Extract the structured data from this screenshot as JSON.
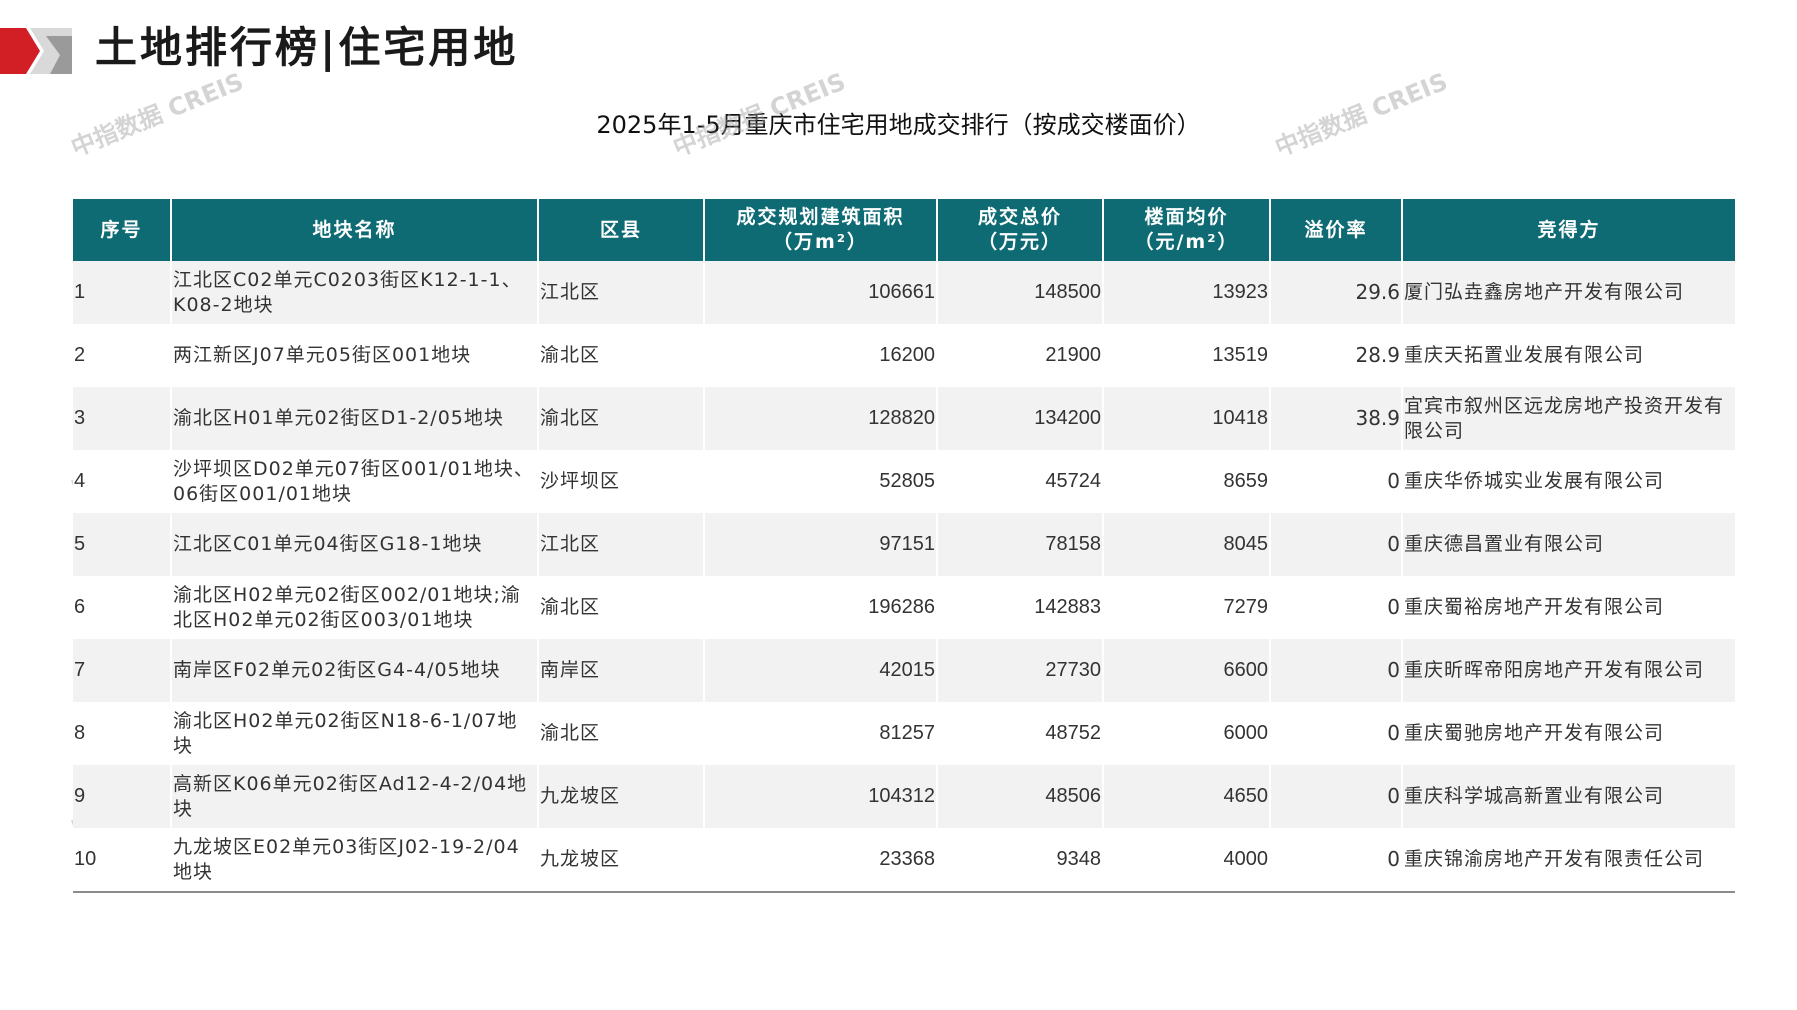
{
  "header": {
    "title": "土地排行榜|住宅用地"
  },
  "table_title": "2025年1-5月重庆市住宅用地成交排行（按成交楼面价）",
  "watermark_text": "中指数据 CREIS",
  "columns": [
    "序号",
    "地块名称",
    "区县",
    "成交规划建筑面积",
    "（万m²）",
    "成交总价",
    "（万元）",
    "楼面均价",
    "（元/m²）",
    "溢价率",
    "竞得方"
  ],
  "header_cells": {
    "rank": "序号",
    "name": "地块名称",
    "district": "区县",
    "area_line1": "成交规划建筑面积",
    "area_line2": "（万m²）",
    "total_line1": "成交总价",
    "total_line2": "（万元）",
    "price_line1": "楼面均价",
    "price_line2": "（元/m²）",
    "premium": "溢价率",
    "buyer": "竞得方"
  },
  "rows": [
    {
      "rank": "1",
      "name": "江北区C02单元C0203街区K12-1-1、K08-2地块",
      "district": "江北区",
      "area": "106661",
      "total": "148500",
      "price": "13923",
      "premium": "29.6",
      "buyer": "厦门弘垚鑫房地产开发有限公司"
    },
    {
      "rank": "2",
      "name": "两江新区J07单元05街区001地块",
      "district": "渝北区",
      "area": "16200",
      "total": "21900",
      "price": "13519",
      "premium": "28.9",
      "buyer": "重庆天拓置业发展有限公司"
    },
    {
      "rank": "3",
      "name": "渝北区H01单元02街区D1-2/05地块",
      "district": "渝北区",
      "area": "128820",
      "total": "134200",
      "price": "10418",
      "premium": "38.9",
      "buyer": "宜宾市叙州区远龙房地产投资开发有限公司"
    },
    {
      "rank": "4",
      "name": "沙坪坝区D02单元07街区001/01地块、06街区001/01地块",
      "district": "沙坪坝区",
      "area": "52805",
      "total": "45724",
      "price": "8659",
      "premium": "0",
      "buyer": "重庆华侨城实业发展有限公司"
    },
    {
      "rank": "5",
      "name": "江北区C01单元04街区G18-1地块",
      "district": "江北区",
      "area": "97151",
      "total": "78158",
      "price": "8045",
      "premium": "0",
      "buyer": "重庆德昌置业有限公司"
    },
    {
      "rank": "6",
      "name": "渝北区H02单元02街区002/01地块;渝北区H02单元02街区003/01地块",
      "district": "渝北区",
      "area": "196286",
      "total": "142883",
      "price": "7279",
      "premium": "0",
      "buyer": "重庆蜀裕房地产开发有限公司"
    },
    {
      "rank": "7",
      "name": "南岸区F02单元02街区G4-4/05地块",
      "district": "南岸区",
      "area": "42015",
      "total": "27730",
      "price": "6600",
      "premium": "0",
      "buyer": "重庆昕晖帝阳房地产开发有限公司"
    },
    {
      "rank": "8",
      "name": "渝北区H02单元02街区N18-6-1/07地块",
      "district": "渝北区",
      "area": "81257",
      "total": "48752",
      "price": "6000",
      "premium": "0",
      "buyer": "重庆蜀驰房地产开发有限公司"
    },
    {
      "rank": "9",
      "name": "高新区K06单元02街区Ad12-4-2/04地块",
      "district": "九龙坡区",
      "area": "104312",
      "total": "48506",
      "price": "4650",
      "premium": "0",
      "buyer": "重庆科学城高新置业有限公司"
    },
    {
      "rank": "10",
      "name": "九龙坡区E02单元03街区J02-19-2/04地块",
      "district": "九龙坡区",
      "area": "23368",
      "total": "9348",
      "price": "4000",
      "premium": "0",
      "buyer": "重庆锦渝房地产开发有限责任公司"
    }
  ],
  "colors": {
    "header_bg": "#0e6b74",
    "price_text": "#c00000",
    "accent_red": "#d21f26",
    "accent_gray": "#9a9a9a"
  }
}
